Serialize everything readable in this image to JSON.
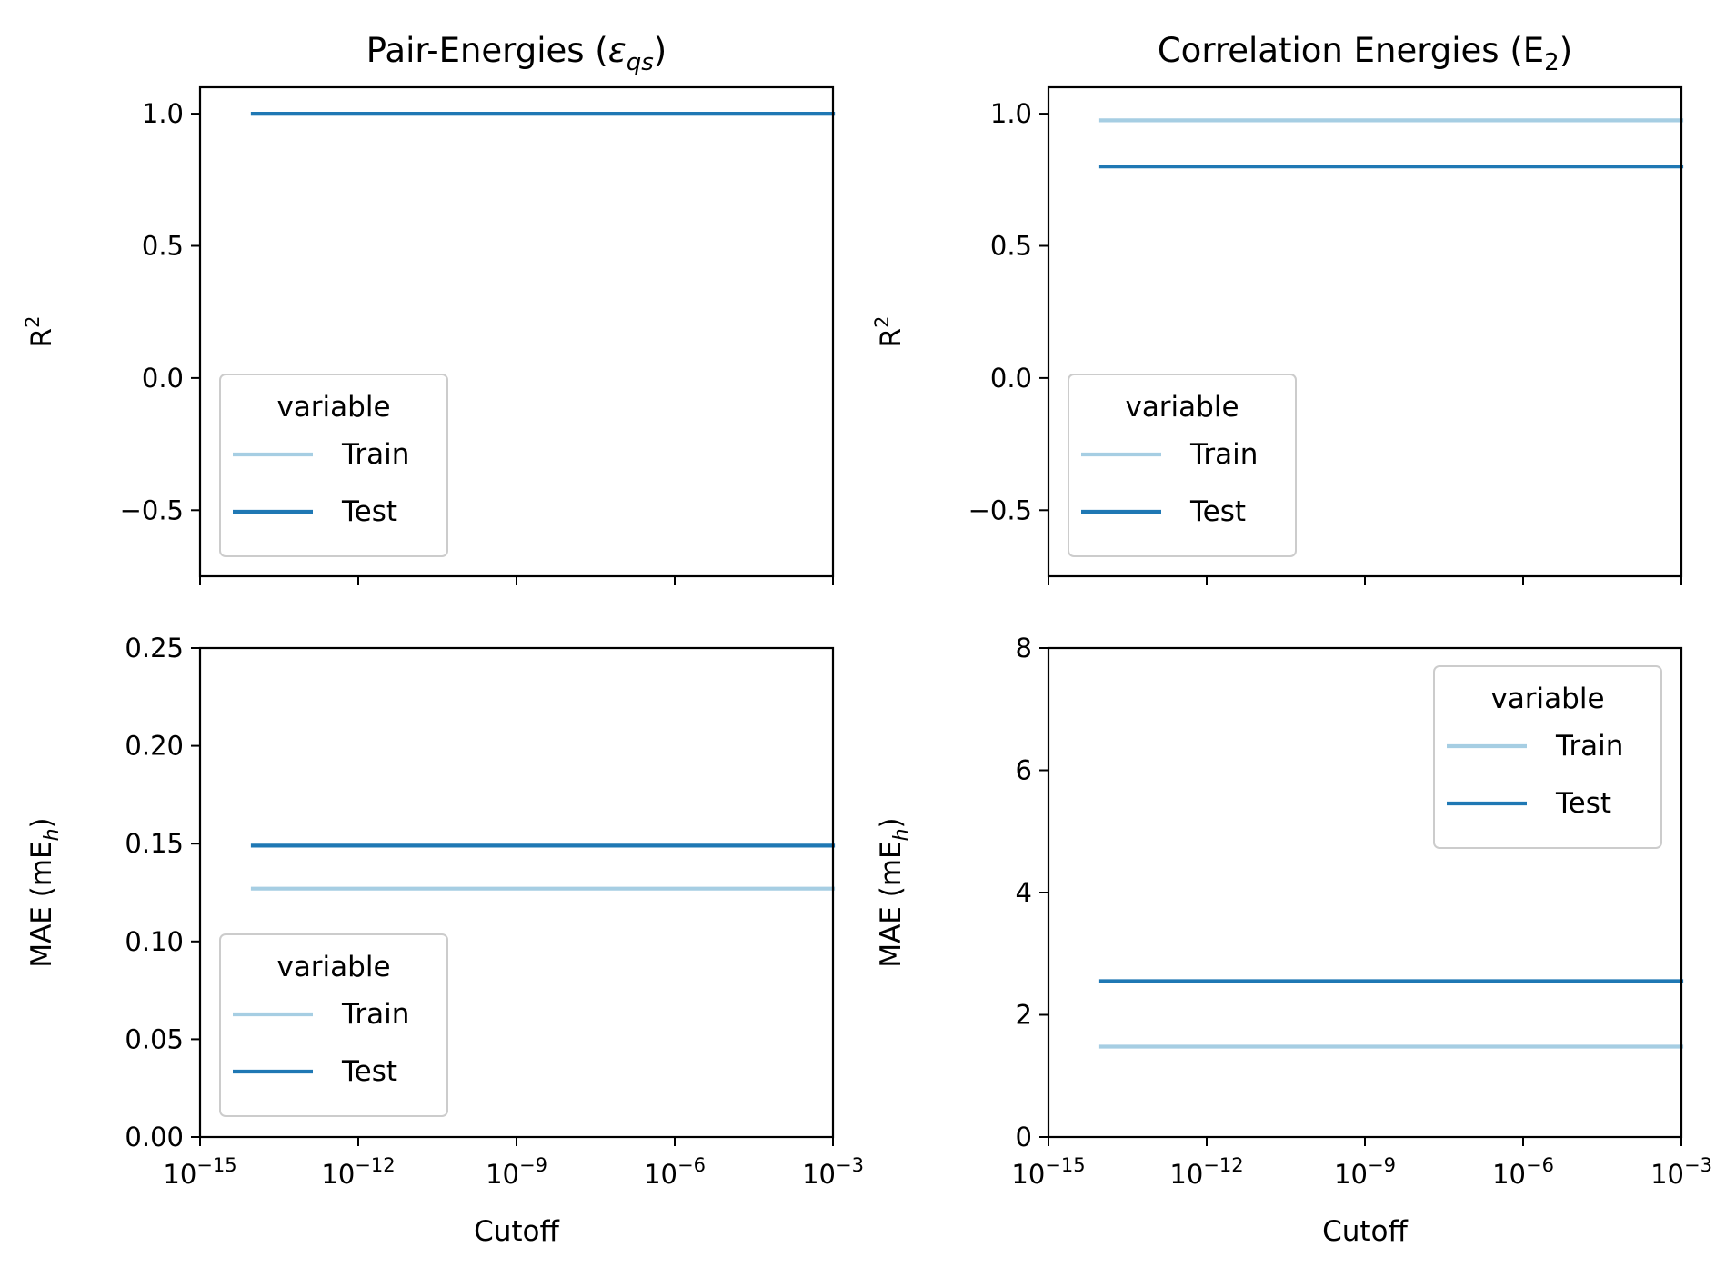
{
  "colors": {
    "train": "#a6cee3",
    "test": "#1f78b4",
    "axes": "#000000",
    "legend_border": "#cccccc"
  },
  "chart_data": [
    {
      "type": "line",
      "title": "Pair-Energies (εqs)",
      "title_main": "Pair-Energies (",
      "title_symbol": "ε",
      "title_sub": "qs",
      "title_end": ")",
      "xlabel": "",
      "ylabel": "R²",
      "ylabel_main": "R",
      "ylabel_sup": "2",
      "xscale": "log",
      "xlim": [
        1e-15,
        0.001
      ],
      "ylim": [
        -0.75,
        1.1
      ],
      "xticks": [
        -15,
        -12,
        -9,
        -6,
        -3
      ],
      "xtick_labels_visible": false,
      "yticks": [
        1.0,
        0.5,
        0.0,
        -0.5
      ],
      "ytick_labels": [
        "1.0",
        "0.5",
        "0.0",
        "−0.5"
      ],
      "legend": {
        "title": "variable",
        "position": "lower-left"
      },
      "series": [
        {
          "name": "Train",
          "color_key": "train",
          "x": [
            1e-14,
            0.001
          ],
          "y": [
            1.0,
            1.0
          ]
        },
        {
          "name": "Test",
          "color_key": "test",
          "x": [
            1e-14,
            0.001
          ],
          "y": [
            1.0,
            1.0
          ]
        }
      ]
    },
    {
      "type": "line",
      "title": "Correlation Energies (E₂)",
      "title_main": "Correlation Energies (E",
      "title_symbol": "",
      "title_sub": "2",
      "title_end": ")",
      "xlabel": "",
      "ylabel": "R²",
      "ylabel_main": "R",
      "ylabel_sup": "2",
      "xscale": "log",
      "xlim": [
        1e-15,
        0.001
      ],
      "ylim": [
        -0.75,
        1.1
      ],
      "xticks": [
        -15,
        -12,
        -9,
        -6,
        -3
      ],
      "xtick_labels_visible": false,
      "yticks": [
        1.0,
        0.5,
        0.0,
        -0.5
      ],
      "ytick_labels": [
        "1.0",
        "0.5",
        "0.0",
        "−0.5"
      ],
      "legend": {
        "title": "variable",
        "position": "lower-left"
      },
      "series": [
        {
          "name": "Train",
          "color_key": "train",
          "x": [
            1e-14,
            0.001
          ],
          "y": [
            0.975,
            0.975
          ]
        },
        {
          "name": "Test",
          "color_key": "test",
          "x": [
            1e-14,
            0.001
          ],
          "y": [
            0.8,
            0.8
          ]
        }
      ]
    },
    {
      "type": "line",
      "title": "",
      "xlabel": "Cutoff",
      "ylabel": "MAE (mEₕ)",
      "ylabel_main": "MAE (mE",
      "ylabel_sub": "h",
      "ylabel_end": ")",
      "xscale": "log",
      "xlim": [
        1e-15,
        0.001
      ],
      "ylim": [
        0,
        0.25
      ],
      "xticks": [
        -15,
        -12,
        -9,
        -6,
        -3
      ],
      "xtick_labels_visible": true,
      "xtick_base": "10",
      "xtick_exps": [
        "−15",
        "−12",
        "−9",
        "−6",
        "−3"
      ],
      "yticks": [
        0.0,
        0.05,
        0.1,
        0.15,
        0.2,
        0.25
      ],
      "ytick_labels": [
        "0.00",
        "0.05",
        "0.10",
        "0.15",
        "0.20",
        "0.25"
      ],
      "legend": {
        "title": "variable",
        "position": "lower-left"
      },
      "series": [
        {
          "name": "Train",
          "color_key": "train",
          "x": [
            1e-14,
            0.001
          ],
          "y": [
            0.127,
            0.127
          ]
        },
        {
          "name": "Test",
          "color_key": "test",
          "x": [
            1e-14,
            0.001
          ],
          "y": [
            0.149,
            0.149
          ]
        }
      ]
    },
    {
      "type": "line",
      "title": "",
      "xlabel": "Cutoff",
      "ylabel": "MAE (mEₕ)",
      "ylabel_main": "MAE (mE",
      "ylabel_sub": "h",
      "ylabel_end": ")",
      "xscale": "log",
      "xlim": [
        1e-15,
        0.001
      ],
      "ylim": [
        0,
        8
      ],
      "xticks": [
        -15,
        -12,
        -9,
        -6,
        -3
      ],
      "xtick_labels_visible": true,
      "xtick_base": "10",
      "xtick_exps": [
        "−15",
        "−12",
        "−9",
        "−6",
        "−3"
      ],
      "yticks": [
        0,
        2,
        4,
        6,
        8
      ],
      "ytick_labels": [
        "0",
        "2",
        "4",
        "6",
        "8"
      ],
      "legend": {
        "title": "variable",
        "position": "upper-right"
      },
      "series": [
        {
          "name": "Train",
          "color_key": "train",
          "x": [
            1e-14,
            0.001
          ],
          "y": [
            1.48,
            1.48
          ]
        },
        {
          "name": "Test",
          "color_key": "test",
          "x": [
            1e-14,
            0.001
          ],
          "y": [
            2.55,
            2.55
          ]
        }
      ]
    }
  ]
}
